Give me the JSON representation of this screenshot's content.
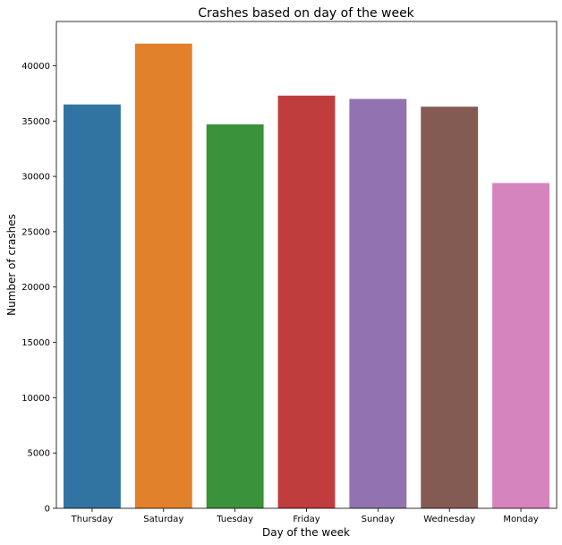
{
  "chart_data": {
    "type": "bar",
    "title": "Crashes based on day of the week",
    "xlabel": "Day of the week",
    "ylabel": "Number of crashes",
    "categories": [
      "Thursday",
      "Saturday",
      "Tuesday",
      "Friday",
      "Sunday",
      "Wednesday",
      "Monday"
    ],
    "values": [
      36500,
      42000,
      34700,
      37300,
      37000,
      36300,
      29400
    ],
    "colors": [
      "#3274a1",
      "#e1812c",
      "#3a923a",
      "#c03d3e",
      "#9372b2",
      "#845b53",
      "#d684bd"
    ],
    "ylim": [
      0,
      44000
    ],
    "yticks": [
      0,
      5000,
      10000,
      15000,
      20000,
      25000,
      30000,
      35000,
      40000
    ],
    "grid": false,
    "legend": "none"
  }
}
